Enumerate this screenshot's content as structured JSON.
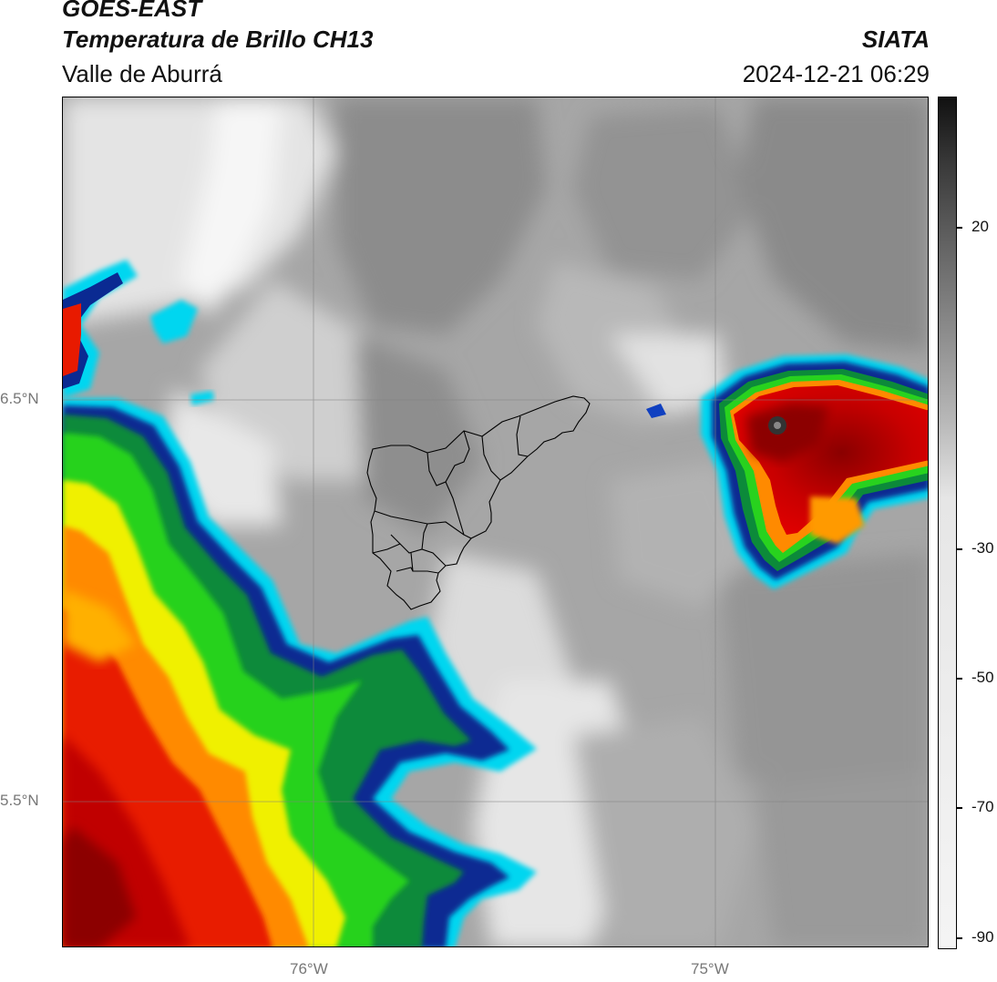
{
  "header": {
    "source": "GOES-EAST",
    "product": "Temperatura de Brillo CH13",
    "region": "Valle de Aburrá",
    "organization": "SIATA",
    "timestamp": "2024-12-21 06:29"
  },
  "map": {
    "lat_labels": [
      "6.5°N",
      "5.5°N"
    ],
    "lon_labels": [
      "76°W",
      "75°W"
    ]
  },
  "colorbar": {
    "range": [
      -90,
      35
    ],
    "ticks": [
      {
        "value": 20,
        "label": "20"
      },
      {
        "value": -30,
        "label": "-30"
      },
      {
        "value": -50,
        "label": "-50"
      },
      {
        "value": -70,
        "label": "-70"
      },
      {
        "value": -90,
        "label": "-90"
      }
    ]
  }
}
